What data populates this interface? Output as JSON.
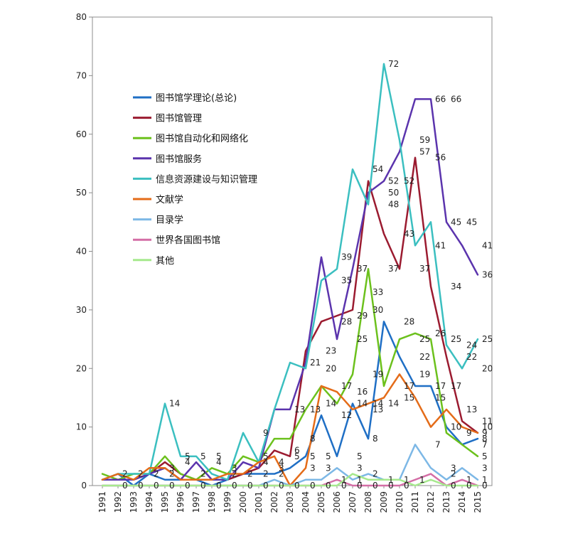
{
  "chart_data": {
    "type": "line",
    "title": "",
    "xlabel": "",
    "ylabel": "",
    "ylim": [
      0,
      80
    ],
    "yticks": [
      0,
      10,
      20,
      30,
      40,
      50,
      60,
      70,
      80
    ],
    "grid": false,
    "legend_position": "upper-left",
    "x": [
      "1991",
      "1992",
      "1993",
      "1994",
      "1995",
      "1996",
      "1997",
      "1998",
      "1999",
      "2000",
      "2001",
      "2002",
      "2003",
      "2004",
      "2005",
      "2006",
      "2007",
      "2008",
      "2009",
      "2010",
      "2011",
      "2012",
      "2013",
      "2014",
      "2015"
    ],
    "series": [
      {
        "name": "图书馆学理论(总论)",
        "color": "#1f6fc5",
        "values": [
          1,
          2,
          0,
          2,
          1,
          1,
          1,
          0,
          1,
          2,
          2,
          2,
          3,
          5,
          12,
          5,
          14,
          8,
          28,
          22,
          17,
          17,
          10,
          7,
          8
        ]
      },
      {
        "name": "图书馆管理",
        "color": "#9b1b30",
        "values": [
          1,
          1,
          1,
          2,
          4,
          2,
          1,
          1,
          1,
          2,
          3,
          6,
          5,
          23,
          28,
          29,
          30,
          52,
          43,
          37,
          56,
          34,
          22,
          11,
          9
        ]
      },
      {
        "name": "图书馆自动化和网络化",
        "color": "#6cc11d",
        "values": [
          2,
          1,
          2,
          2,
          5,
          2,
          1,
          3,
          2,
          5,
          4,
          8,
          8,
          13,
          17,
          14,
          19,
          37,
          17,
          25,
          26,
          25,
          9,
          7,
          5
        ]
      },
      {
        "name": "图书馆服务",
        "color": "#5b34ad",
        "values": [
          1,
          1,
          1,
          2,
          3,
          1,
          4,
          1,
          1,
          4,
          3,
          13,
          13,
          21,
          39,
          25,
          37,
          50,
          52,
          57,
          66,
          66,
          45,
          41,
          36
        ]
      },
      {
        "name": "信息资源建设与知识管理",
        "color": "#3bbfc0",
        "values": [
          1,
          2,
          2,
          2,
          14,
          5,
          5,
          2,
          1,
          9,
          4,
          13,
          21,
          20,
          35,
          37,
          54,
          48,
          72,
          59,
          41,
          45,
          24,
          20,
          25
        ]
      },
      {
        "name": "文献学",
        "color": "#e46c19",
        "values": [
          1,
          2,
          1,
          3,
          3,
          1,
          1,
          1,
          2,
          2,
          4,
          5,
          0,
          3,
          17,
          16,
          13,
          14,
          15,
          19,
          15,
          10,
          13,
          10,
          9
        ]
      },
      {
        "name": "目录学",
        "color": "#7db8e6",
        "values": [
          0,
          0,
          0,
          0,
          0,
          0,
          0,
          0,
          0,
          0,
          0,
          1,
          0,
          1,
          1,
          3,
          1,
          2,
          1,
          1,
          7,
          3,
          1,
          3,
          1
        ]
      },
      {
        "name": "世界各国图书馆",
        "color": "#d46ea6",
        "values": [
          0,
          0,
          0,
          0,
          0,
          0,
          0,
          0,
          0,
          0,
          0,
          0,
          0,
          0,
          0,
          1,
          0,
          0,
          0,
          0,
          1,
          2,
          0,
          1,
          0
        ]
      },
      {
        "name": "其他",
        "color": "#a6e98d",
        "values": [
          0,
          0,
          0,
          0,
          0,
          0,
          0,
          0,
          0,
          0,
          0,
          0,
          0,
          0,
          0,
          0,
          2,
          1,
          1,
          1,
          0,
          1,
          0,
          0,
          0
        ]
      }
    ],
    "annotations": [
      {
        "text": "2",
        "x": "1992",
        "y": 2
      },
      {
        "text": "2",
        "x": "1993",
        "y": 2
      },
      {
        "text": "2",
        "x": "1994",
        "y": 2
      },
      {
        "text": "0",
        "x": "1992",
        "y": 0
      },
      {
        "text": "0",
        "x": "1993",
        "y": 0
      },
      {
        "text": "0",
        "x": "1994",
        "y": 0
      },
      {
        "text": "2",
        "x": "1995",
        "y": 2
      },
      {
        "text": "3",
        "x": "1995",
        "y": 3
      },
      {
        "text": "0",
        "x": "1995",
        "y": 0
      },
      {
        "text": "14",
        "x": "1995",
        "y": 14
      },
      {
        "text": "5",
        "x": "1996",
        "y": 5
      },
      {
        "text": "4",
        "x": "1996",
        "y": 4
      },
      {
        "text": "0",
        "x": "1996",
        "y": 0
      },
      {
        "text": "5",
        "x": "1997",
        "y": 5
      },
      {
        "text": "2",
        "x": "1997",
        "y": 2
      },
      {
        "text": "0",
        "x": "1997",
        "y": 0
      },
      {
        "text": "5",
        "x": "1998",
        "y": 5
      },
      {
        "text": "4",
        "x": "1998",
        "y": 4
      },
      {
        "text": "0",
        "x": "1998",
        "y": 0
      },
      {
        "text": "3",
        "x": "1999",
        "y": 3
      },
      {
        "text": "2",
        "x": "1999",
        "y": 2
      },
      {
        "text": "0",
        "x": "1999",
        "y": 0
      },
      {
        "text": "2",
        "x": "2000",
        "y": 2
      },
      {
        "text": "0",
        "x": "2000",
        "y": 0
      },
      {
        "text": "9",
        "x": "2001",
        "y": 9
      },
      {
        "text": "5",
        "x": "2001",
        "y": 5
      },
      {
        "text": "4",
        "x": "2001",
        "y": 4
      },
      {
        "text": "2",
        "x": "2001",
        "y": 2
      },
      {
        "text": "0",
        "x": "2001",
        "y": 0
      },
      {
        "text": "4",
        "x": "2002",
        "y": 4
      },
      {
        "text": "3",
        "x": "2002",
        "y": 3
      },
      {
        "text": "2",
        "x": "2002",
        "y": 2
      },
      {
        "text": "0",
        "x": "2002",
        "y": 0
      },
      {
        "text": "13",
        "x": "2003",
        "y": 13
      },
      {
        "text": "6",
        "x": "2003",
        "y": 6
      },
      {
        "text": "5",
        "x": "2003",
        "y": 5
      },
      {
        "text": "0",
        "x": "2003",
        "y": 0
      },
      {
        "text": "21",
        "x": "2004",
        "y": 21
      },
      {
        "text": "13",
        "x": "2004",
        "y": 13
      },
      {
        "text": "8",
        "x": "2004",
        "y": 8
      },
      {
        "text": "5",
        "x": "2004",
        "y": 5
      },
      {
        "text": "3",
        "x": "2004",
        "y": 3
      },
      {
        "text": "0",
        "x": "2004",
        "y": 0
      },
      {
        "text": "23",
        "x": "2005",
        "y": 23
      },
      {
        "text": "20",
        "x": "2005",
        "y": 20
      },
      {
        "text": "14",
        "x": "2005",
        "y": 14
      },
      {
        "text": "5",
        "x": "2005",
        "y": 5
      },
      {
        "text": "3",
        "x": "2005",
        "y": 3
      },
      {
        "text": "0",
        "x": "2005",
        "y": 0
      },
      {
        "text": "39",
        "x": "2006",
        "y": 39
      },
      {
        "text": "35",
        "x": "2006",
        "y": 35
      },
      {
        "text": "28",
        "x": "2006",
        "y": 28
      },
      {
        "text": "17",
        "x": "2006",
        "y": 17
      },
      {
        "text": "12",
        "x": "2006",
        "y": 12
      },
      {
        "text": "1",
        "x": "2006",
        "y": 1
      },
      {
        "text": "0",
        "x": "2006",
        "y": 0
      },
      {
        "text": "37",
        "x": "2007",
        "y": 37
      },
      {
        "text": "29",
        "x": "2007",
        "y": 29
      },
      {
        "text": "25",
        "x": "2007",
        "y": 25
      },
      {
        "text": "16",
        "x": "2007",
        "y": 16
      },
      {
        "text": "14",
        "x": "2007",
        "y": 14
      },
      {
        "text": "5",
        "x": "2007",
        "y": 5
      },
      {
        "text": "3",
        "x": "2007",
        "y": 3
      },
      {
        "text": "1",
        "x": "2007",
        "y": 1
      },
      {
        "text": "0",
        "x": "2007",
        "y": 0
      },
      {
        "text": "54",
        "x": "2008",
        "y": 54
      },
      {
        "text": "33",
        "x": "2008",
        "y": 33
      },
      {
        "text": "30",
        "x": "2008",
        "y": 30
      },
      {
        "text": "19",
        "x": "2008",
        "y": 19
      },
      {
        "text": "14",
        "x": "2008",
        "y": 14
      },
      {
        "text": "13",
        "x": "2008",
        "y": 13
      },
      {
        "text": "8",
        "x": "2008",
        "y": 8
      },
      {
        "text": "2",
        "x": "2008",
        "y": 2
      },
      {
        "text": "0",
        "x": "2008",
        "y": 0
      },
      {
        "text": "72",
        "x": "2009",
        "y": 72
      },
      {
        "text": "52",
        "x": "2009",
        "y": 52
      },
      {
        "text": "50",
        "x": "2009",
        "y": 50
      },
      {
        "text": "48",
        "x": "2009",
        "y": 48
      },
      {
        "text": "37",
        "x": "2009",
        "y": 37
      },
      {
        "text": "14",
        "x": "2009",
        "y": 14
      },
      {
        "text": "1",
        "x": "2009",
        "y": 1
      },
      {
        "text": "0",
        "x": "2009",
        "y": 0
      },
      {
        "text": "52",
        "x": "2010",
        "y": 52
      },
      {
        "text": "43",
        "x": "2010",
        "y": 43
      },
      {
        "text": "28",
        "x": "2010",
        "y": 28
      },
      {
        "text": "17",
        "x": "2010",
        "y": 17
      },
      {
        "text": "15",
        "x": "2010",
        "y": 15
      },
      {
        "text": "1",
        "x": "2010",
        "y": 1
      },
      {
        "text": "0",
        "x": "2010",
        "y": 0
      },
      {
        "text": "59",
        "x": "2011",
        "y": 59
      },
      {
        "text": "57",
        "x": "2011",
        "y": 57
      },
      {
        "text": "37",
        "x": "2011",
        "y": 37
      },
      {
        "text": "25",
        "x": "2011",
        "y": 25
      },
      {
        "text": "22",
        "x": "2011",
        "y": 22
      },
      {
        "text": "19",
        "x": "2011",
        "y": 19
      },
      {
        "text": "1",
        "x": "2011",
        "y": 1
      },
      {
        "text": "66",
        "x": "2012",
        "y": 66
      },
      {
        "text": "56",
        "x": "2012",
        "y": 56
      },
      {
        "text": "41",
        "x": "2012",
        "y": 41
      },
      {
        "text": "26",
        "x": "2012",
        "y": 26
      },
      {
        "text": "17",
        "x": "2012",
        "y": 17
      },
      {
        "text": "15",
        "x": "2012",
        "y": 15
      },
      {
        "text": "7",
        "x": "2012",
        "y": 7
      },
      {
        "text": "66",
        "x": "2013",
        "y": 66
      },
      {
        "text": "45",
        "x": "2013",
        "y": 45
      },
      {
        "text": "34",
        "x": "2013",
        "y": 34
      },
      {
        "text": "25",
        "x": "2013",
        "y": 25
      },
      {
        "text": "17",
        "x": "2013",
        "y": 17
      },
      {
        "text": "10",
        "x": "2013",
        "y": 10
      },
      {
        "text": "3",
        "x": "2013",
        "y": 3
      },
      {
        "text": "2",
        "x": "2013",
        "y": 2
      },
      {
        "text": "0",
        "x": "2013",
        "y": 0
      },
      {
        "text": "45",
        "x": "2014",
        "y": 45
      },
      {
        "text": "24",
        "x": "2014",
        "y": 24
      },
      {
        "text": "22",
        "x": "2014",
        "y": 22
      },
      {
        "text": "13",
        "x": "2014",
        "y": 13
      },
      {
        "text": "9",
        "x": "2014",
        "y": 9
      },
      {
        "text": "1",
        "x": "2014",
        "y": 1
      },
      {
        "text": "0",
        "x": "2014",
        "y": 0
      },
      {
        "text": "41",
        "x": "2015",
        "y": 41
      },
      {
        "text": "36",
        "x": "2015",
        "y": 36
      },
      {
        "text": "25",
        "x": "2015",
        "y": 25
      },
      {
        "text": "20",
        "x": "2015",
        "y": 20
      },
      {
        "text": "11",
        "x": "2015",
        "y": 11
      },
      {
        "text": "10",
        "x": "2015",
        "y": 10
      },
      {
        "text": "9",
        "x": "2015",
        "y": 9
      },
      {
        "text": "8",
        "x": "2015",
        "y": 8
      },
      {
        "text": "7",
        "x": "2015",
        "y": 7
      },
      {
        "text": "5",
        "x": "2015",
        "y": 5
      },
      {
        "text": "3",
        "x": "2015",
        "y": 3
      },
      {
        "text": "1",
        "x": "2015",
        "y": 1
      },
      {
        "text": "0",
        "x": "2015",
        "y": 0
      }
    ]
  }
}
